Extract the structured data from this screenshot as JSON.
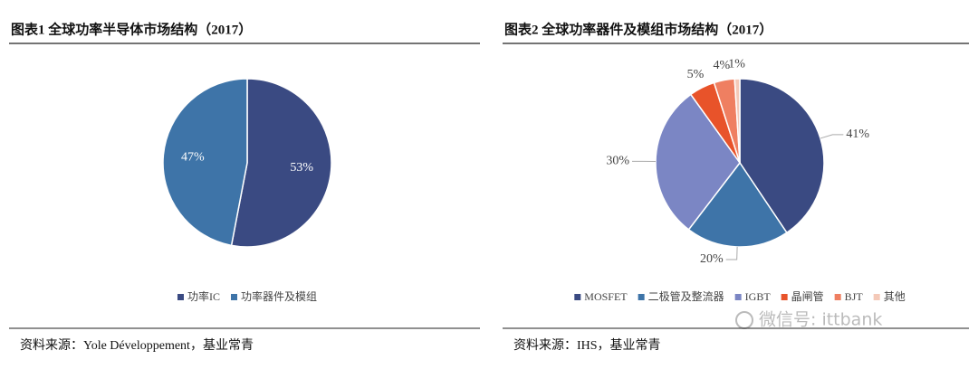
{
  "chart_data": [
    {
      "type": "pie",
      "title": "图表1 全球功率半导体市场结构（2017）",
      "categories": [
        "功率IC",
        "功率器件及模组"
      ],
      "values": [
        53,
        47
      ],
      "value_labels": [
        "53%",
        "47%"
      ],
      "colors": [
        "#3a4a82",
        "#3e74a8"
      ],
      "labels": "inside",
      "source": "资料来源：Yole Développement，基业常青"
    },
    {
      "type": "pie",
      "title": "图表2 全球功率器件及模组市场结构（2017）",
      "categories": [
        "MOSFET",
        "二极管及整流器",
        "IGBT",
        "晶闸管",
        "BJT",
        "其他"
      ],
      "values": [
        41,
        20,
        30,
        5,
        4,
        1
      ],
      "value_labels": [
        "41%",
        "20%",
        "30%",
        "5%",
        "4%",
        "1%"
      ],
      "colors": [
        "#3a4a82",
        "#3e74a8",
        "#7b86c4",
        "#e8532a",
        "#ef7f61",
        "#f4c9b8"
      ],
      "labels": "outside",
      "source": "资料来源：IHS，基业常青"
    }
  ],
  "watermark": "微信号: ittbank"
}
